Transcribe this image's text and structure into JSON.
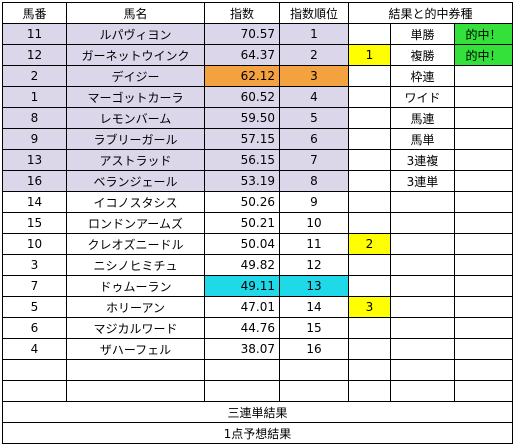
{
  "headers": {
    "umaban": "馬番",
    "bamei": "馬名",
    "shisu": "指数",
    "juni": "指数順位",
    "results": "結果と的中券種"
  },
  "rows": [
    {
      "umaban": "11",
      "name": "ルパヴィヨン",
      "index": "70.57",
      "rank": "1",
      "place": "",
      "ticket": "単勝",
      "hit": "的中！",
      "highlight": "top8"
    },
    {
      "umaban": "12",
      "name": "ガーネットウインク",
      "index": "64.37",
      "rank": "2",
      "place": "1",
      "ticket": "複勝",
      "hit": "的中！",
      "highlight": "top8"
    },
    {
      "umaban": "2",
      "name": "デイジー",
      "index": "62.12",
      "rank": "3",
      "place": "",
      "ticket": "枠連",
      "hit": "",
      "highlight": "orange"
    },
    {
      "umaban": "1",
      "name": "マーゴットカーラ",
      "index": "60.52",
      "rank": "4",
      "place": "",
      "ticket": "ワイド",
      "hit": "",
      "highlight": "top8"
    },
    {
      "umaban": "8",
      "name": "レモンバーム",
      "index": "59.50",
      "rank": "5",
      "place": "",
      "ticket": "馬連",
      "hit": "",
      "highlight": "top8"
    },
    {
      "umaban": "9",
      "name": "ラブリーガール",
      "index": "57.15",
      "rank": "6",
      "place": "",
      "ticket": "馬単",
      "hit": "",
      "highlight": "top8"
    },
    {
      "umaban": "13",
      "name": "アストラッド",
      "index": "56.15",
      "rank": "7",
      "place": "",
      "ticket": "3連複",
      "hit": "",
      "highlight": "top8"
    },
    {
      "umaban": "16",
      "name": "ベランジェール",
      "index": "53.19",
      "rank": "8",
      "place": "",
      "ticket": "3連単",
      "hit": "",
      "highlight": "top8"
    },
    {
      "umaban": "14",
      "name": "イコノスタシス",
      "index": "50.26",
      "rank": "9",
      "place": "",
      "ticket": "",
      "hit": "",
      "highlight": "none"
    },
    {
      "umaban": "15",
      "name": "ロンドンアームズ",
      "index": "50.21",
      "rank": "10",
      "place": "",
      "ticket": "",
      "hit": "",
      "highlight": "none"
    },
    {
      "umaban": "10",
      "name": "クレオズニードル",
      "index": "50.04",
      "rank": "11",
      "place": "2",
      "ticket": "",
      "hit": "",
      "highlight": "none"
    },
    {
      "umaban": "3",
      "name": "ニシノヒミチュ",
      "index": "49.82",
      "rank": "12",
      "place": "",
      "ticket": "",
      "hit": "",
      "highlight": "none"
    },
    {
      "umaban": "7",
      "name": "ドゥムーラン",
      "index": "49.11",
      "rank": "13",
      "place": "",
      "ticket": "",
      "hit": "",
      "highlight": "cyan"
    },
    {
      "umaban": "5",
      "name": "ホリーアン",
      "index": "47.01",
      "rank": "14",
      "place": "3",
      "ticket": "",
      "hit": "",
      "highlight": "none"
    },
    {
      "umaban": "6",
      "name": "マジカルワード",
      "index": "44.76",
      "rank": "15",
      "place": "",
      "ticket": "",
      "hit": "",
      "highlight": "none"
    },
    {
      "umaban": "4",
      "name": "ザハーフェル",
      "index": "38.07",
      "rank": "16",
      "place": "",
      "ticket": "",
      "hit": "",
      "highlight": "none"
    },
    {
      "umaban": "",
      "name": "",
      "index": "",
      "rank": "",
      "place": "",
      "ticket": "",
      "hit": "",
      "highlight": "none"
    },
    {
      "umaban": "",
      "name": "",
      "index": "",
      "rank": "",
      "place": "",
      "ticket": "",
      "hit": "",
      "highlight": "none"
    }
  ],
  "footer": {
    "sanrentan_result": "三連単結果",
    "one_point_forecast": "1点予想結果"
  },
  "colors": {
    "top8": "#dcd6ea",
    "orange": "#f4a13f",
    "cyan": "#1fd8e8",
    "place_marker": "#ffff00",
    "hit": "#33e13a"
  }
}
